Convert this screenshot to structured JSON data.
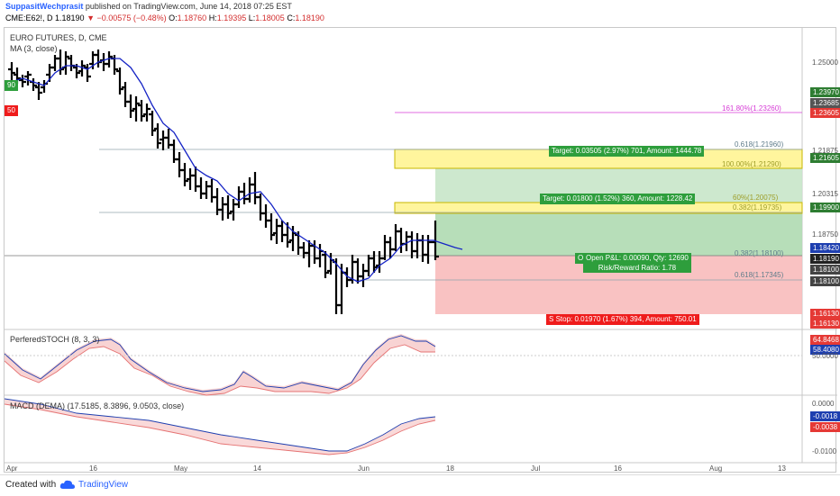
{
  "header": {
    "author": "SuppasitWechprasit",
    "published": "published on TradingView.com, June 14, 2018 07:25 EST",
    "symbol": "CME:E62!, D",
    "last": "1.18190",
    "arrow": "▼",
    "change": "−0.00575 (−0.48%)",
    "o_label": "O:",
    "o_val": "1.18760",
    "h_label": "H:",
    "h_val": "1.19395",
    "l_label": "L:",
    "l_val": "1.18005",
    "c_label": "C:",
    "c_val": "1.18190"
  },
  "main": {
    "title": "EURO FUTURES, D, CME",
    "ma_label": "MA (3, close)",
    "left_green_badge": "90",
    "left_red_badge": "50",
    "fib_labels": {
      "f1618": "161.80%(1.23260)",
      "f0618_top": "0.618(1.21960)",
      "f100": "100.00%(1.21290)",
      "f60": "60%(1.20075)",
      "f382a": "0.382(1.19735)",
      "f382b": "0.382(1.18100)",
      "f618b": "0.618(1.17345)"
    },
    "target1": "Target: 0.03505 (2.97%) 701, Amount: 1444.78",
    "target2": "Target: 0.01800 (1.52%) 360, Amount: 1228.42",
    "open_pl": "Open P&L: 0.00090, Qty: 12690",
    "rr": "Risk/Reward Ratio: 1.78",
    "stop": "Stop: 0.01970 (1.67%) 394, Amount: 750.01",
    "open_pl_left": "O",
    "stop_left": "S"
  },
  "price_axis": {
    "ticks": [
      "1.25000",
      "1.21875",
      "1.20315",
      "1.18750"
    ],
    "labels": [
      {
        "text": "1.23970",
        "color": "#2e7d32"
      },
      {
        "text": "1.23685",
        "color": "#555555"
      },
      {
        "text": "1.23605",
        "color": "#e53935"
      },
      {
        "text": "1.21605",
        "color": "#2e7d32"
      },
      {
        "text": "1.19900",
        "color": "#2e7d32"
      },
      {
        "text": "1.18420",
        "color": "#1e3fb0"
      },
      {
        "text": "1.18190",
        "color": "#222222"
      },
      {
        "text": "1.18100",
        "color": "#444444"
      },
      {
        "text": "1.18100",
        "color": "#444444"
      },
      {
        "text": "1.16130",
        "color": "#e53935"
      },
      {
        "text": "1.16130",
        "color": "#e53935"
      }
    ]
  },
  "stoch": {
    "title": "PerferedSTOCH (8, 3, 3)",
    "ticks": [
      "50.0000"
    ],
    "labels": [
      {
        "text": "64.8468",
        "color": "#e53935"
      },
      {
        "text": "58.4080",
        "color": "#1e3fb0"
      }
    ]
  },
  "macd": {
    "title": "MACD (DEMA) (17.5185, 8.3896, 9.0503, close)",
    "ticks": [
      "0.0000",
      "-0.0100"
    ],
    "labels": [
      {
        "text": "-0.0018",
        "color": "#1e3fb0"
      },
      {
        "text": "-0.0038",
        "color": "#e53935"
      }
    ]
  },
  "time_axis": [
    "Apr",
    "16",
    "May",
    "14",
    "Jun",
    "18",
    "Jul",
    "16",
    "Aug",
    "13"
  ],
  "footer": {
    "created": "Created with",
    "brand": "TradingView"
  },
  "colors": {
    "ma": "#1523c5",
    "target_zone": "#c8e6c9",
    "stop_zone": "#f8bbbb",
    "yellow_zone": "#fff59d",
    "green_badge": "#2e9e3c",
    "red_badge": "#ef1c1c"
  }
}
